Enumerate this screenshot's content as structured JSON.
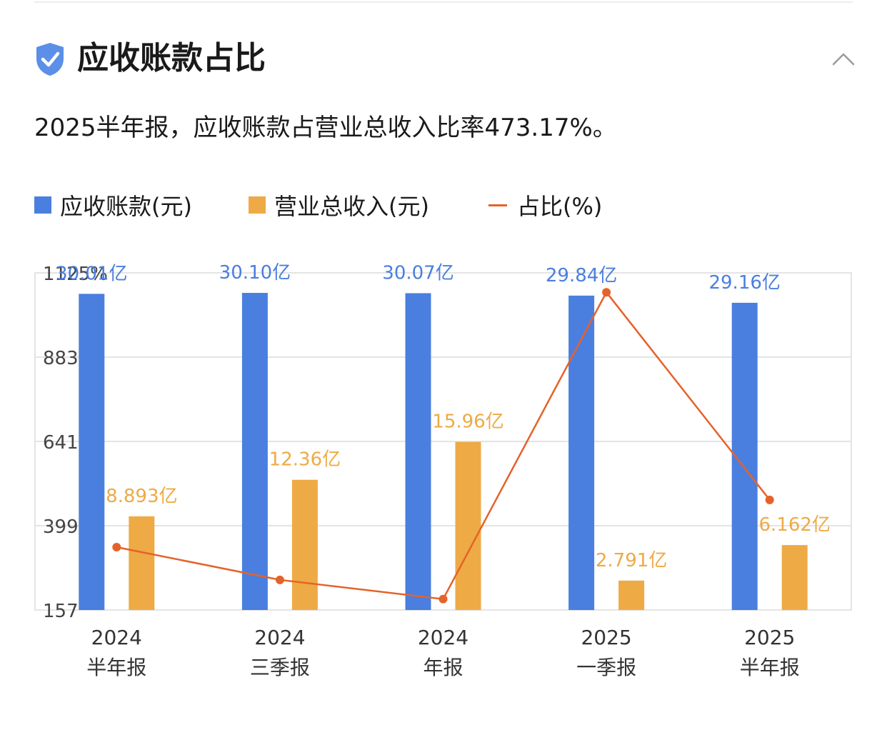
{
  "header": {
    "title": "应收账款占比",
    "icon": "shield-check-icon",
    "collapse_icon": "chevron-up-icon"
  },
  "summary": "2025半年报，应收账款占营业总收入比率473.17%。",
  "colors": {
    "receivables": "#4a7fdf",
    "revenue": "#eeaa45",
    "ratio": "#e5622a",
    "shield": "#5b8fe8"
  },
  "chart_data": {
    "type": "bar",
    "categories": [
      [
        "2024",
        "半年报"
      ],
      [
        "2024",
        "三季报"
      ],
      [
        "2024",
        "年报"
      ],
      [
        "2025",
        "一季报"
      ],
      [
        "2025",
        "半年报"
      ]
    ],
    "legend": [
      "应收账款(元)",
      "营业总收入(元)",
      "占比(%)"
    ],
    "legend_placement": "top-left",
    "series": [
      {
        "name": "应收账款(元)",
        "type": "bar",
        "axis": "left",
        "values": [
          30.01,
          30.1,
          30.07,
          29.84,
          29.16
        ],
        "labels": [
          "30.01亿",
          "30.10亿",
          "30.07亿",
          "29.84亿",
          "29.16亿"
        ]
      },
      {
        "name": "营业总收入(元)",
        "type": "bar",
        "axis": "left",
        "values": [
          8.893,
          12.36,
          15.96,
          2.791,
          6.162
        ],
        "labels": [
          "8.893亿",
          "12.36亿",
          "15.96亿",
          "2.791亿",
          "6.162亿"
        ]
      },
      {
        "name": "占比(%)",
        "type": "line",
        "axis": "right",
        "values": [
          337.5,
          243.5,
          188.4,
          1069.2,
          473.17
        ]
      }
    ],
    "ratio_axis": {
      "ticks": [
        "157",
        "399",
        "641",
        "883",
        "1125%"
      ],
      "tick_values": [
        157,
        399,
        641,
        883,
        1125
      ],
      "range": [
        157,
        1125
      ]
    },
    "grid": true
  }
}
